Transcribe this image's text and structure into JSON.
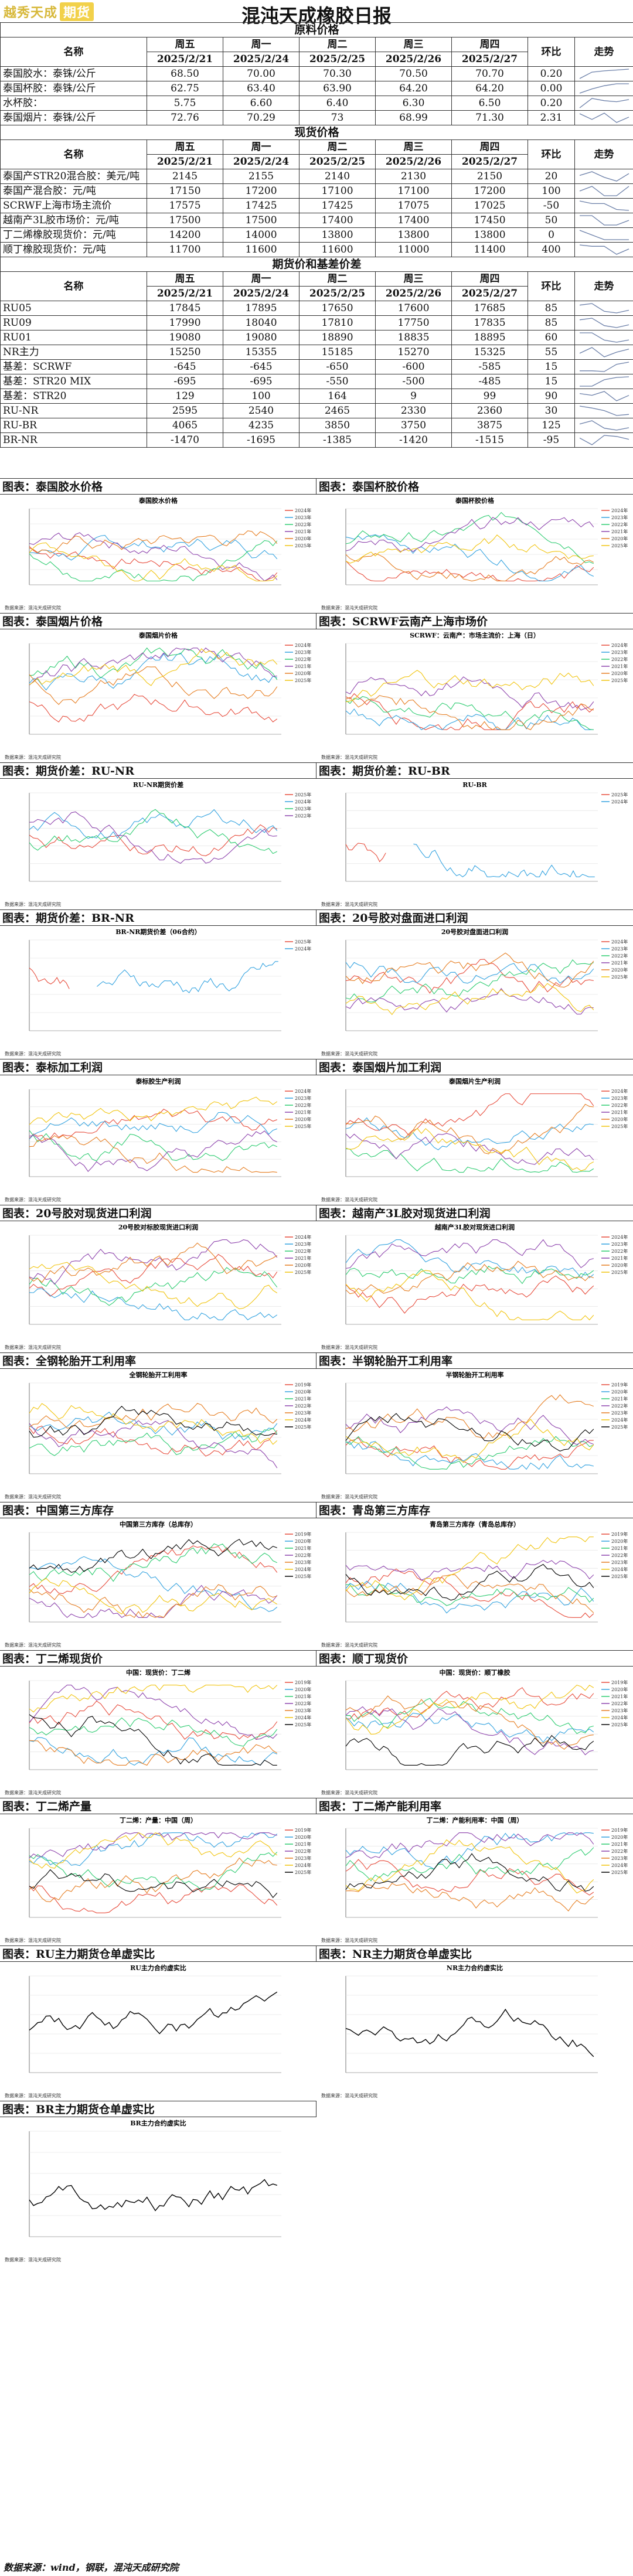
{
  "header": {
    "logo_text": "越秀天成",
    "logo_box": "期货",
    "title": "混沌天成橡胶日报"
  },
  "colors": {
    "c2019": "#1f4e9c",
    "c2020": "#e67e22",
    "c2021": "#8e44ad",
    "c2022": "#2ecc71",
    "c2023": "#34a3e0",
    "c2024": "#e74c3c",
    "c2025": "#000000"
  },
  "raw": {
    "section": "原料价格",
    "head": {
      "name": "名称",
      "days": [
        "周五",
        "周一",
        "周二",
        "周三",
        "周四"
      ],
      "dates": [
        "2025/2/21",
        "2025/2/24",
        "2025/2/25",
        "2025/2/26",
        "2025/2/27"
      ],
      "chg": "环比",
      "trend": "走势"
    },
    "rows": [
      {
        "name": "泰国胶水：泰铢/公斤",
        "v": [
          "68.50",
          "70.00",
          "70.30",
          "70.50",
          "70.70"
        ],
        "chg": "0.20"
      },
      {
        "name": "泰国杯胶：泰铢/公斤",
        "v": [
          "62.75",
          "63.40",
          "63.90",
          "64.20",
          "64.20"
        ],
        "chg": "0.00"
      },
      {
        "name": "水杯胶：",
        "v": [
          "5.75",
          "6.60",
          "6.40",
          "6.30",
          "6.50"
        ],
        "chg": "0.20"
      },
      {
        "name": "泰国烟片：泰铢/公斤",
        "v": [
          "72.76",
          "70.29",
          "73",
          "68.99",
          "71.30"
        ],
        "chg": "2.31"
      }
    ]
  },
  "spot": {
    "section": "现货价格",
    "rows": [
      {
        "name": "泰国产STR20混合胶：美元/吨",
        "v": [
          "2145",
          "2155",
          "2140",
          "2130",
          "2150"
        ],
        "chg": "20"
      },
      {
        "name": "泰国产混合胶：元/吨",
        "v": [
          "17150",
          "17200",
          "17100",
          "17100",
          "17200"
        ],
        "chg": "100"
      },
      {
        "name": "SCRWF上海市场主流价",
        "v": [
          "17575",
          "17425",
          "17425",
          "17075",
          "17025"
        ],
        "chg": "-50"
      },
      {
        "name": "越南产3L胶市场价：元/吨",
        "v": [
          "17500",
          "17500",
          "17400",
          "17400",
          "17450"
        ],
        "chg": "50"
      },
      {
        "name": "丁二烯橡胶现货价：元/吨",
        "v": [
          "14200",
          "14000",
          "13800",
          "13800",
          "13800"
        ],
        "chg": "0"
      },
      {
        "name": "顺丁橡胶现货价：元/吨",
        "v": [
          "11700",
          "11600",
          "11600",
          "11000",
          "11400"
        ],
        "chg": "400"
      }
    ]
  },
  "futures": {
    "section": "期货价和基差价差",
    "rows": [
      {
        "name": "RU05",
        "v": [
          "17845",
          "17895",
          "17650",
          "17600",
          "17685"
        ],
        "chg": "85"
      },
      {
        "name": "RU09",
        "v": [
          "17990",
          "18040",
          "17810",
          "17750",
          "17835"
        ],
        "chg": "85"
      },
      {
        "name": "RU01",
        "v": [
          "19080",
          "19080",
          "18890",
          "18835",
          "18895"
        ],
        "chg": "60"
      },
      {
        "name": "NR主力",
        "v": [
          "15250",
          "15355",
          "15185",
          "15270",
          "15325"
        ],
        "chg": "55"
      },
      {
        "name": "基差：SCRWF",
        "v": [
          "-645",
          "-645",
          "-650",
          "-600",
          "-585"
        ],
        "chg": "15"
      },
      {
        "name": "基差：STR20 MIX",
        "v": [
          "-695",
          "-695",
          "-550",
          "-500",
          "-485"
        ],
        "chg": "15"
      },
      {
        "name": "基差：STR20",
        "v": [
          "129",
          "100",
          "164",
          "9",
          "99"
        ],
        "chg": "90"
      },
      {
        "name": "RU-NR",
        "v": [
          "2595",
          "2540",
          "2465",
          "2330",
          "2360"
        ],
        "chg": "30"
      },
      {
        "name": "RU-BR",
        "v": [
          "4065",
          "4235",
          "3850",
          "3750",
          "3875"
        ],
        "chg": "125"
      },
      {
        "name": "BR-NR",
        "v": [
          "-1470",
          "-1695",
          "-1385",
          "-1420",
          "-1515"
        ],
        "chg": "-95"
      }
    ]
  },
  "panels": [
    {
      "label": "图表：泰国胶水价格",
      "title": "泰国胶水价格",
      "legend": [
        "2024年",
        "2023年",
        "2022年",
        "2021年",
        "2020年",
        "2025年"
      ],
      "source": "数据来源：混沌天成研究院"
    },
    {
      "label": "图表：泰国杯胶价格",
      "title": "泰国杯胶价格",
      "legend": [
        "2024年",
        "2023年",
        "2022年",
        "2021年",
        "2020年",
        "2025年"
      ],
      "source": "数据来源：混沌天成研究院"
    },
    {
      "label": "图表：泰国烟片价格",
      "title": "泰国烟片价格",
      "legend": [
        "2024年",
        "2023年",
        "2022年",
        "2021年",
        "2020年",
        "2025年"
      ],
      "source": "数据来源：混沌天成研究院"
    },
    {
      "label": "图表：SCRWF云南产上海市场价",
      "title": "SCRWF：云南产：市场主流价：上海（日）",
      "legend": [
        "2024年",
        "2023年",
        "2022年",
        "2021年",
        "2020年",
        "2025年"
      ],
      "source": "数据来源：混沌天成研究院"
    },
    {
      "label": "图表：期货价差：RU-NR",
      "title": "RU-NR期货价差",
      "legend": [
        "2025年",
        "2024年",
        "2023年",
        "2022年"
      ],
      "source": "数据来源：混沌天成研究院"
    },
    {
      "label": "图表：期货价差：RU-BR",
      "title": "RU-BR",
      "legend": [
        "2025年",
        "2024年"
      ],
      "source": "数据来源：混沌天成研究院"
    },
    {
      "label": "图表：期货价差：BR-NR",
      "title": "BR-NR期货价差（06合约）",
      "legend": [
        "2025年",
        "2024年"
      ],
      "source": "数据来源：混沌天成研究院"
    },
    {
      "label": "图表：20号胶对盘面进口利润",
      "title": "20号胶对盘面进口利润",
      "legend": [
        "2024年",
        "2023年",
        "2022年",
        "2021年",
        "2020年",
        "2025年"
      ],
      "source": "数据来源：混沌天成研究院"
    },
    {
      "label": "图表：泰标加工利润",
      "title": "泰标胶生产利润",
      "legend": [
        "2024年",
        "2023年",
        "2022年",
        "2021年",
        "2020年",
        "2025年"
      ],
      "source": "数据来源：混沌天成研究院"
    },
    {
      "label": "图表：泰国烟片加工利润",
      "title": "泰国烟片生产利润",
      "legend": [
        "2024年",
        "2023年",
        "2022年",
        "2021年",
        "2020年",
        "2025年"
      ],
      "source": "数据来源：混沌天成研究院"
    },
    {
      "label": "图表：20号胶对现货进口利润",
      "title": "20号胶对标胶现货进口利润",
      "legend": [
        "2024年",
        "2023年",
        "2022年",
        "2021年",
        "2020年",
        "2025年"
      ],
      "source": "数据来源：混沌天成研究院"
    },
    {
      "label": "图表：越南产3L胶对现货进口利润",
      "title": "越南产3L胶对现货进口利润",
      "legend": [
        "2024年",
        "2023年",
        "2022年",
        "2021年",
        "2020年",
        "2025年"
      ],
      "source": "数据来源：混沌天成研究院"
    },
    {
      "label": "图表：全钢轮胎开工利用率",
      "title": "全钢轮胎开工利用率",
      "legend": [
        "2019年",
        "2020年",
        "2021年",
        "2022年",
        "2023年",
        "2024年",
        "2025年"
      ],
      "source": "数据来源：混沌天成研究院"
    },
    {
      "label": "图表：半钢轮胎开工利用率",
      "title": "半钢轮胎开工利用率",
      "legend": [
        "2019年",
        "2020年",
        "2021年",
        "2022年",
        "2023年",
        "2024年",
        "2025年"
      ],
      "source": "数据来源：混沌天成研究院"
    },
    {
      "label": "图表：中国第三方库存",
      "title": "中国第三方库存（总库存）",
      "legend": [
        "2019年",
        "2020年",
        "2021年",
        "2022年",
        "2023年",
        "2024年",
        "2025年"
      ],
      "source": "数据来源：混沌天成研究院"
    },
    {
      "label": "图表：青岛第三方库存",
      "title": "青岛第三方库存（青岛总库存）",
      "legend": [
        "2019年",
        "2020年",
        "2021年",
        "2022年",
        "2023年",
        "2024年",
        "2025年"
      ],
      "source": "数据来源：混沌天成研究院"
    },
    {
      "label": "图表：丁二烯现货价",
      "title": "中国：现货价：丁二烯",
      "legend": [
        "2019年",
        "2020年",
        "2021年",
        "2022年",
        "2023年",
        "2024年",
        "2025年"
      ],
      "source": "数据来源：混沌天成研究院"
    },
    {
      "label": "图表：顺丁现货价",
      "title": "中国：现货价：顺丁橡胶",
      "legend": [
        "2019年",
        "2020年",
        "2021年",
        "2022年",
        "2023年",
        "2024年",
        "2025年"
      ],
      "source": "数据来源：混沌天成研究院"
    },
    {
      "label": "图表：丁二烯产量",
      "title": "丁二烯：产量：中国（周）",
      "legend": [
        "2019年",
        "2020年",
        "2021年",
        "2022年",
        "2023年",
        "2024年",
        "2025年"
      ],
      "source": "数据来源：混沌天成研究院"
    },
    {
      "label": "图表：丁二烯产能利用率",
      "title": "丁二烯：产能利用率：中国（周）",
      "legend": [
        "2019年",
        "2020年",
        "2021年",
        "2022年",
        "2023年",
        "2024年",
        "2025年"
      ],
      "source": "数据来源：混沌天成研究院"
    },
    {
      "label": "图表：RU主力期货仓单虚实比",
      "title": "RU主力合约虚实比",
      "legend": [],
      "source": "数据来源：混沌天成研究院"
    },
    {
      "label": "图表：NR主力期货仓单虚实比",
      "title": "NR主力合约虚实比",
      "legend": [],
      "source": "数据来源：混沌天成研究院"
    },
    {
      "label": "图表：BR主力期货仓单虚实比",
      "title": "BR主力合约虚实比",
      "legend": [],
      "source": "数据来源：混沌天成研究院"
    }
  ],
  "footer": "数据来源：wind，钢联，混沌天成研究院"
}
